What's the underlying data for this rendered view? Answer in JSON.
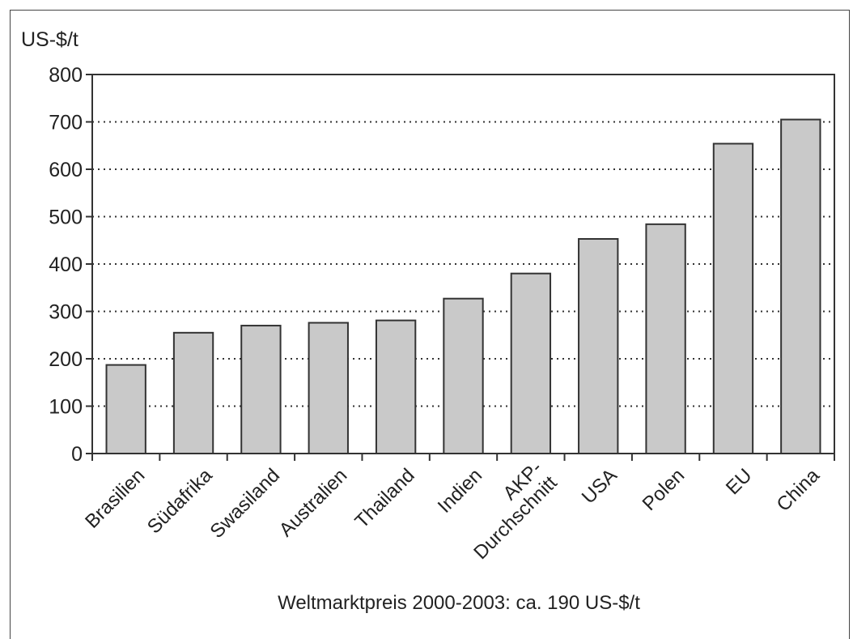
{
  "chart_data": {
    "type": "bar",
    "ylabel": "US-$/t",
    "categories": [
      "Brasilien",
      "Südafrika",
      "Swasiland",
      "Australien",
      "Thailand",
      "Indien",
      "AKP-\nDurchschnitt",
      "USA",
      "Polen",
      "EU",
      "China"
    ],
    "values": [
      187,
      255,
      270,
      276,
      281,
      327,
      380,
      453,
      484,
      654,
      705
    ],
    "yticks": [
      0,
      100,
      200,
      300,
      400,
      500,
      600,
      700,
      800
    ],
    "ylim": [
      0,
      800
    ],
    "grid": "dotted-horizontal",
    "bar_color": "#c9c9c9",
    "bar_edge_color": "#333333",
    "caption": "Weltmarktpreis 2000-2003: ca. 190 US-$/t"
  }
}
